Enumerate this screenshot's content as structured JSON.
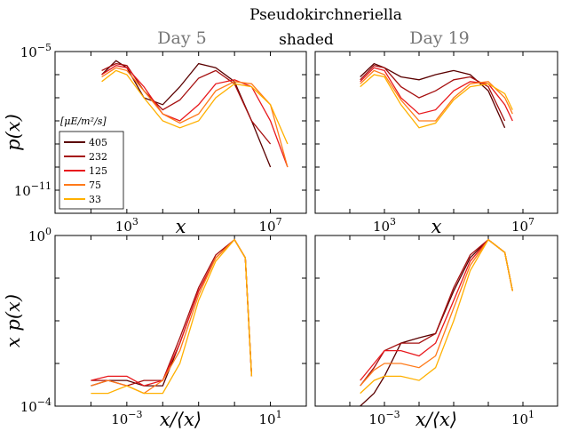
{
  "title": "Pseudokirchneriella",
  "subtitle": "shaded",
  "panel_titles": [
    "Day 5",
    "Day 19"
  ],
  "legend_title": "[μE/m²/s]",
  "colors": [
    "#5a0000",
    "#a50f0f",
    "#e8191d",
    "#ff7a1a",
    "#ffb000"
  ],
  "chart_data": [
    {
      "type": "line",
      "panel": "top-left",
      "panel_title": "Day 5",
      "xlabel": "x",
      "ylabel": "p(x)",
      "x_scale": "log",
      "y_scale": "log",
      "xlim": [
        10.0,
        100000000.0
      ],
      "ylim": [
        1e-12,
        1e-05
      ],
      "x_ticks": [
        "10^3",
        "10^7"
      ],
      "y_ticks": [
        "10^-5",
        "10^-11"
      ],
      "grid": false,
      "legend_position": "bottom-left",
      "series": [
        {
          "name": "405",
          "x": [
            200,
            500,
            1000,
            3000,
            10000,
            30000,
            100000,
            300000,
            1000000,
            3000000,
            10000000
          ],
          "y": [
            1e-06,
            4e-06,
            2e-06,
            1e-07,
            5e-08,
            3e-07,
            3e-06,
            2e-06,
            5e-07,
            1e-08,
            1e-10
          ]
        },
        {
          "name": "232",
          "x": [
            200,
            500,
            1000,
            3000,
            10000,
            30000,
            100000,
            300000,
            1000000,
            3000000,
            10000000
          ],
          "y": [
            1.5e-06,
            3e-06,
            2.5e-06,
            2e-07,
            3e-08,
            8e-08,
            7e-07,
            1.5e-06,
            4e-07,
            1e-08,
            1e-09
          ]
        },
        {
          "name": "125",
          "x": [
            200,
            500,
            1000,
            3000,
            10000,
            30000,
            100000,
            300000,
            1000000,
            3000000,
            10000000,
            30000000
          ],
          "y": [
            1e-06,
            2.5e-06,
            2e-06,
            3e-07,
            2e-08,
            1e-08,
            5e-08,
            4e-07,
            6e-07,
            3e-07,
            1e-08,
            1e-10
          ]
        },
        {
          "name": "75",
          "x": [
            200,
            500,
            1000,
            3000,
            10000,
            30000,
            100000,
            300000,
            1000000,
            3000000,
            10000000,
            30000000
          ],
          "y": [
            8e-07,
            2e-06,
            1.5e-06,
            2e-07,
            2e-08,
            8e-09,
            2e-08,
            2e-07,
            5e-07,
            4e-07,
            5e-08,
            1e-10
          ]
        },
        {
          "name": "33",
          "x": [
            200,
            500,
            1000,
            3000,
            10000,
            30000,
            100000,
            300000,
            1000000,
            3000000,
            10000000,
            30000000
          ],
          "y": [
            5e-07,
            1.5e-06,
            1e-06,
            1e-07,
            1e-08,
            5e-09,
            1e-08,
            1e-07,
            4e-07,
            3e-07,
            5e-08,
            1e-09
          ]
        }
      ]
    },
    {
      "type": "line",
      "panel": "top-right",
      "panel_title": "Day 19",
      "xlabel": "x",
      "ylabel": "",
      "x_scale": "log",
      "y_scale": "log",
      "xlim": [
        10.0,
        100000000.0
      ],
      "ylim": [
        1e-12,
        1e-05
      ],
      "x_ticks": [
        "10^3",
        "10^7"
      ],
      "y_ticks": [],
      "grid": false,
      "series": [
        {
          "name": "405",
          "x": [
            200,
            500,
            1000,
            3000,
            10000,
            30000,
            100000,
            300000,
            1000000,
            3000000
          ],
          "y": [
            8e-07,
            3e-06,
            2e-06,
            8e-07,
            6e-07,
            1e-06,
            1.5e-06,
            1e-06,
            2e-07,
            5e-09
          ]
        },
        {
          "name": "232",
          "x": [
            200,
            500,
            1000,
            3000,
            10000,
            30000,
            100000,
            300000,
            1000000,
            3000000
          ],
          "y": [
            6e-07,
            2.5e-06,
            2e-06,
            3e-07,
            1e-07,
            2e-07,
            6e-07,
            8e-07,
            3e-07,
            1e-08
          ]
        },
        {
          "name": "125",
          "x": [
            200,
            500,
            1000,
            3000,
            10000,
            30000,
            100000,
            300000,
            1000000,
            3000000,
            5000000
          ],
          "y": [
            5e-07,
            2e-06,
            1.5e-06,
            1e-07,
            2e-08,
            3e-08,
            2e-07,
            5e-07,
            4e-07,
            5e-08,
            1e-08
          ]
        },
        {
          "name": "75",
          "x": [
            200,
            500,
            1000,
            3000,
            10000,
            30000,
            100000,
            300000,
            1000000,
            3000000,
            5000000
          ],
          "y": [
            4e-07,
            1.5e-06,
            1e-06,
            8e-08,
            1e-08,
            1e-08,
            1e-07,
            4e-07,
            5e-07,
            1e-07,
            2e-08
          ]
        },
        {
          "name": "33",
          "x": [
            200,
            500,
            1000,
            3000,
            10000,
            30000,
            100000,
            300000,
            1000000,
            3000000,
            5000000
          ],
          "y": [
            3e-07,
            1e-06,
            8e-07,
            5e-08,
            5e-09,
            8e-09,
            8e-08,
            3e-07,
            4e-07,
            1.5e-07,
            3e-08
          ]
        }
      ]
    },
    {
      "type": "line",
      "panel": "bottom-left",
      "xlabel": "x/⟨x⟩",
      "ylabel": "x p(x)",
      "x_scale": "log",
      "y_scale": "log",
      "xlim": [
        1e-05,
        100.0
      ],
      "ylim": [
        0.0001,
        1
      ],
      "x_ticks": [
        "10^-3",
        "10^1"
      ],
      "y_ticks": [
        "10^0",
        "10^-4"
      ],
      "grid": false,
      "series": [
        {
          "name": "405",
          "x": [
            0.0001,
            0.0003,
            0.001,
            0.003,
            0.01,
            0.03,
            0.1,
            0.3,
            1,
            2,
            3
          ],
          "y": [
            0.0003,
            0.0004,
            0.0004,
            0.0003,
            0.0003,
            0.003,
            0.05,
            0.3,
            0.8,
            0.3,
            0.0005
          ]
        },
        {
          "name": "232",
          "x": [
            0.0001,
            0.0003,
            0.001,
            0.003,
            0.01,
            0.03,
            0.1,
            0.3,
            1,
            2,
            3
          ],
          "y": [
            0.0004,
            0.0004,
            0.0003,
            0.0004,
            0.0004,
            0.004,
            0.06,
            0.35,
            0.8,
            0.3,
            0.0005
          ]
        },
        {
          "name": "125",
          "x": [
            0.0001,
            0.0003,
            0.001,
            0.003,
            0.01,
            0.03,
            0.1,
            0.3,
            1,
            2,
            3
          ],
          "y": [
            0.0004,
            0.0005,
            0.0005,
            0.0003,
            0.0004,
            0.003,
            0.05,
            0.3,
            0.8,
            0.3,
            0.0005
          ]
        },
        {
          "name": "75",
          "x": [
            0.0001,
            0.0003,
            0.001,
            0.003,
            0.01,
            0.03,
            0.1,
            0.3,
            1,
            2,
            3
          ],
          "y": [
            0.0003,
            0.0004,
            0.0003,
            0.0002,
            0.0004,
            0.002,
            0.04,
            0.3,
            0.8,
            0.3,
            0.0005
          ]
        },
        {
          "name": "33",
          "x": [
            0.0001,
            0.0003,
            0.001,
            0.003,
            0.01,
            0.03,
            0.1,
            0.3,
            1,
            2,
            3
          ],
          "y": [
            0.0002,
            0.0002,
            0.0003,
            0.0002,
            0.0002,
            0.001,
            0.03,
            0.25,
            0.8,
            0.3,
            0.0005
          ]
        }
      ]
    },
    {
      "type": "line",
      "panel": "bottom-right",
      "xlabel": "x/⟨x⟩",
      "ylabel": "",
      "x_scale": "log",
      "y_scale": "log",
      "xlim": [
        1e-05,
        100.0
      ],
      "ylim": [
        0.0001,
        1
      ],
      "x_ticks": [
        "10^-3",
        "10^1"
      ],
      "y_ticks": [],
      "grid": false,
      "series": [
        {
          "name": "405",
          "x": [
            0.0002,
            0.0005,
            0.001,
            0.003,
            0.01,
            0.03,
            0.1,
            0.3,
            1,
            3,
            5
          ],
          "y": [
            0.0001,
            0.0002,
            0.0005,
            0.003,
            0.004,
            0.005,
            0.05,
            0.3,
            0.8,
            0.4,
            0.05
          ]
        },
        {
          "name": "232",
          "x": [
            0.0002,
            0.0005,
            0.001,
            0.003,
            0.01,
            0.03,
            0.1,
            0.3,
            1,
            3,
            5
          ],
          "y": [
            0.0003,
            0.0008,
            0.002,
            0.003,
            0.003,
            0.005,
            0.06,
            0.35,
            0.8,
            0.4,
            0.05
          ]
        },
        {
          "name": "125",
          "x": [
            0.0002,
            0.0005,
            0.001,
            0.003,
            0.01,
            0.03,
            0.1,
            0.3,
            1,
            3,
            5
          ],
          "y": [
            0.0004,
            0.001,
            0.002,
            0.002,
            0.0015,
            0.003,
            0.03,
            0.25,
            0.8,
            0.4,
            0.05
          ]
        },
        {
          "name": "75",
          "x": [
            0.0002,
            0.0005,
            0.001,
            0.003,
            0.01,
            0.03,
            0.1,
            0.3,
            1,
            3,
            5
          ],
          "y": [
            0.0003,
            0.0007,
            0.001,
            0.001,
            0.0008,
            0.0015,
            0.02,
            0.2,
            0.8,
            0.4,
            0.05
          ]
        },
        {
          "name": "33",
          "x": [
            0.0002,
            0.0005,
            0.001,
            0.003,
            0.01,
            0.03,
            0.1,
            0.3,
            1,
            3,
            5
          ],
          "y": [
            0.0002,
            0.0004,
            0.0005,
            0.0005,
            0.0004,
            0.0008,
            0.01,
            0.15,
            0.8,
            0.4,
            0.05
          ]
        }
      ]
    }
  ]
}
